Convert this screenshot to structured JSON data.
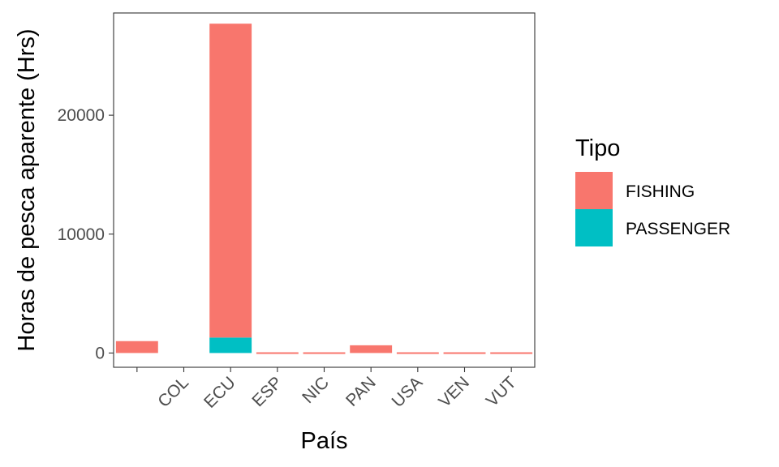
{
  "chart_data": {
    "type": "bar",
    "stacked": true,
    "xlabel": "País",
    "ylabel": "Horas de pesca aparente (Hrs)",
    "categories": [
      "",
      "COL",
      "ECU",
      "ESP",
      "NIC",
      "PAN",
      "USA",
      "VEN",
      "VUT"
    ],
    "yticks": [
      0,
      10000,
      20000
    ],
    "ytick_labels": [
      "0",
      "10000",
      "20000"
    ],
    "ylim": [
      -1200,
      28600
    ],
    "series": [
      {
        "name": "PASSENGER",
        "color": "#00BFC4",
        "values": [
          0,
          0,
          1300,
          0,
          0,
          0,
          0,
          0,
          0
        ]
      },
      {
        "name": "FISHING",
        "color": "#F8766D",
        "values": [
          1000,
          0,
          26400,
          60,
          60,
          650,
          60,
          60,
          60
        ]
      }
    ],
    "legend": {
      "title": "Tipo",
      "placement": "right"
    },
    "grid": false
  }
}
